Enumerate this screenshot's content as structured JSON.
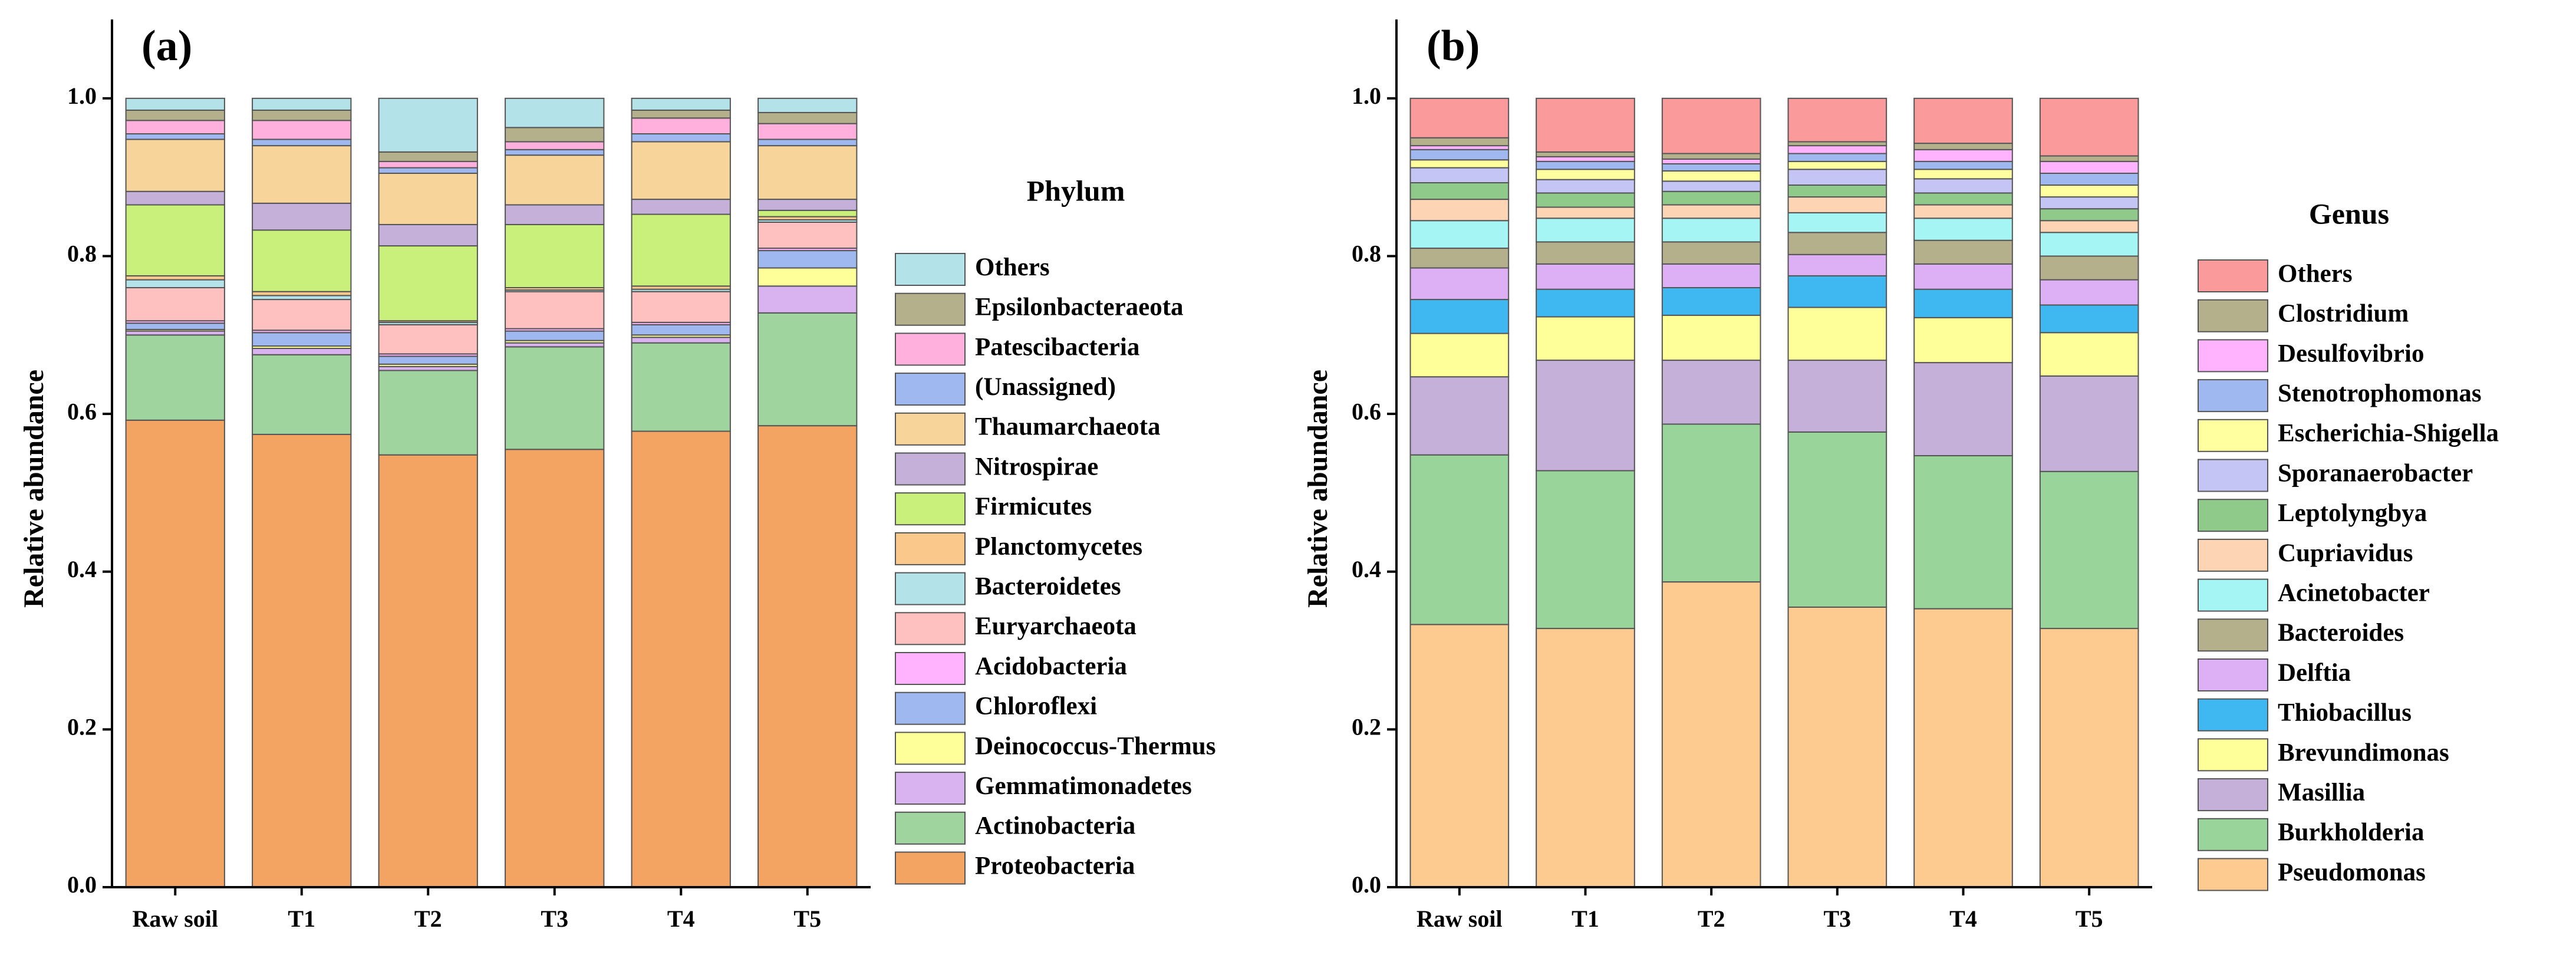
{
  "chart_data": [
    {
      "type": "bar",
      "stacked": true,
      "title": "(a)",
      "legend_title": "Phylum",
      "y_label": "Relative abundance",
      "categories": [
        "Raw soil",
        "T1",
        "T2",
        "T3",
        "T4",
        "T5"
      ],
      "ylim": [
        0,
        1.1
      ],
      "yticks": [
        {
          "value": 0,
          "label": "0.0"
        },
        0.2,
        0.4,
        0.6,
        0.8,
        {
          "value": 1,
          "label": "1.0"
        }
      ],
      "series": [
        {
          "name": "Proteobacteria",
          "color": "#f4a462",
          "values": [
            0.592,
            0.574,
            0.548,
            0.555,
            0.578,
            0.585
          ]
        },
        {
          "name": "Actinobacteria",
          "color": "#9fd49f",
          "values": [
            0.108,
            0.101,
            0.107,
            0.13,
            0.112,
            0.143
          ]
        },
        {
          "name": "Gemmatimonadetes",
          "color": "#d9b3f0",
          "values": [
            0.005,
            0.008,
            0.005,
            0.005,
            0.007,
            0.034
          ]
        },
        {
          "name": "Deinococcus-Thermus",
          "color": "#ffff99",
          "values": [
            0.002,
            0.003,
            0.003,
            0.003,
            0.003,
            0.023
          ]
        },
        {
          "name": "Chloroflexi",
          "color": "#9fb8f0",
          "values": [
            0.008,
            0.017,
            0.01,
            0.012,
            0.013,
            0.022
          ]
        },
        {
          "name": "Acidobacteria",
          "color": "#ffb3ff",
          "values": [
            0.003,
            0.003,
            0.003,
            0.003,
            0.003,
            0.003
          ]
        },
        {
          "name": "Euryarchaeota",
          "color": "#ffc0c0",
          "values": [
            0.042,
            0.039,
            0.037,
            0.047,
            0.039,
            0.033
          ]
        },
        {
          "name": "Bacteroidetes",
          "color": "#b3e3e8",
          "values": [
            0.01,
            0.005,
            0.003,
            0.002,
            0.003,
            0.003
          ]
        },
        {
          "name": "Planctomycetes",
          "color": "#f9c88a",
          "values": [
            0.005,
            0.005,
            0.002,
            0.003,
            0.004,
            0.004
          ]
        },
        {
          "name": "Firmicutes",
          "color": "#c8f07a",
          "values": [
            0.09,
            0.078,
            0.095,
            0.08,
            0.091,
            0.008
          ]
        },
        {
          "name": "Nitrospirae",
          "color": "#c4b0d8",
          "values": [
            0.017,
            0.034,
            0.027,
            0.025,
            0.019,
            0.014
          ]
        },
        {
          "name": "Thaumarchaeota",
          "color": "#f7d49a",
          "values": [
            0.066,
            0.073,
            0.065,
            0.063,
            0.073,
            0.068
          ]
        },
        {
          "name": "(Unassigned)",
          "color": "#9fb8f0",
          "values": [
            0.007,
            0.008,
            0.007,
            0.007,
            0.01,
            0.008
          ]
        },
        {
          "name": "Patescibacteria",
          "color": "#ffb0dc",
          "values": [
            0.017,
            0.024,
            0.008,
            0.01,
            0.02,
            0.02
          ]
        },
        {
          "name": "Epsilonbacteraeota",
          "color": "#b5b08c",
          "values": [
            0.013,
            0.013,
            0.012,
            0.018,
            0.01,
            0.014
          ]
        },
        {
          "name": "Others",
          "color": "#b3e3e8",
          "values": [
            0.015,
            0.015,
            0.068,
            0.037,
            0.015,
            0.018
          ]
        }
      ]
    },
    {
      "type": "bar",
      "stacked": true,
      "title": "(b)",
      "legend_title": "Genus",
      "y_label": "Relative abundance",
      "categories": [
        "Raw soil",
        "T1",
        "T2",
        "T3",
        "T4",
        "T5"
      ],
      "ylim": [
        0,
        1.1
      ],
      "yticks": [
        {
          "value": 0,
          "label": "0.0"
        },
        0.2,
        0.4,
        0.6,
        0.8,
        {
          "value": 1,
          "label": "1.0"
        }
      ],
      "series": [
        {
          "name": "Pseudomonas",
          "color": "#fdca8f",
          "values": [
            0.333,
            0.328,
            0.387,
            0.355,
            0.353,
            0.328
          ]
        },
        {
          "name": "Burkholderia",
          "color": "#99d49a",
          "values": [
            0.215,
            0.2,
            0.2,
            0.222,
            0.194,
            0.199
          ]
        },
        {
          "name": "Masillia",
          "color": "#c4b0d8",
          "values": [
            0.099,
            0.14,
            0.081,
            0.091,
            0.118,
            0.121
          ]
        },
        {
          "name": "Brevundimonas",
          "color": "#ffff99",
          "values": [
            0.055,
            0.055,
            0.057,
            0.067,
            0.057,
            0.055
          ]
        },
        {
          "name": "Thiobacillus",
          "color": "#3fb7f0",
          "values": [
            0.043,
            0.035,
            0.035,
            0.04,
            0.036,
            0.035
          ]
        },
        {
          "name": "Delftia",
          "color": "#ddb0f5",
          "values": [
            0.04,
            0.032,
            0.03,
            0.027,
            0.032,
            0.032
          ]
        },
        {
          "name": "Bacteroides",
          "color": "#b5b08c",
          "values": [
            0.025,
            0.028,
            0.028,
            0.028,
            0.03,
            0.03
          ]
        },
        {
          "name": "Acinetobacter",
          "color": "#a6f5f5",
          "values": [
            0.035,
            0.03,
            0.03,
            0.025,
            0.028,
            0.03
          ]
        },
        {
          "name": "Cupriavidus",
          "color": "#fdd5b5",
          "values": [
            0.027,
            0.014,
            0.017,
            0.02,
            0.017,
            0.015
          ]
        },
        {
          "name": "Leptolyngbya",
          "color": "#8fca8a",
          "values": [
            0.021,
            0.018,
            0.017,
            0.015,
            0.015,
            0.015
          ]
        },
        {
          "name": "Sporanaerobacter",
          "color": "#c4c4f5",
          "values": [
            0.019,
            0.017,
            0.013,
            0.02,
            0.018,
            0.015
          ]
        },
        {
          "name": "Escherichia-Shigella",
          "color": "#ffffa0",
          "values": [
            0.01,
            0.013,
            0.013,
            0.01,
            0.012,
            0.015
          ]
        },
        {
          "name": "Stenotrophomonas",
          "color": "#9fb8f0",
          "values": [
            0.013,
            0.01,
            0.009,
            0.01,
            0.01,
            0.015
          ]
        },
        {
          "name": "Desulfovibrio",
          "color": "#ffb3ff",
          "values": [
            0.005,
            0.006,
            0.006,
            0.01,
            0.015,
            0.015
          ]
        },
        {
          "name": "Clostridium",
          "color": "#b5b08c",
          "values": [
            0.01,
            0.006,
            0.007,
            0.005,
            0.008,
            0.007
          ]
        },
        {
          "name": "Others",
          "color": "#fa9a9a",
          "values": [
            0.05,
            0.068,
            0.07,
            0.055,
            0.057,
            0.073
          ]
        }
      ]
    }
  ]
}
